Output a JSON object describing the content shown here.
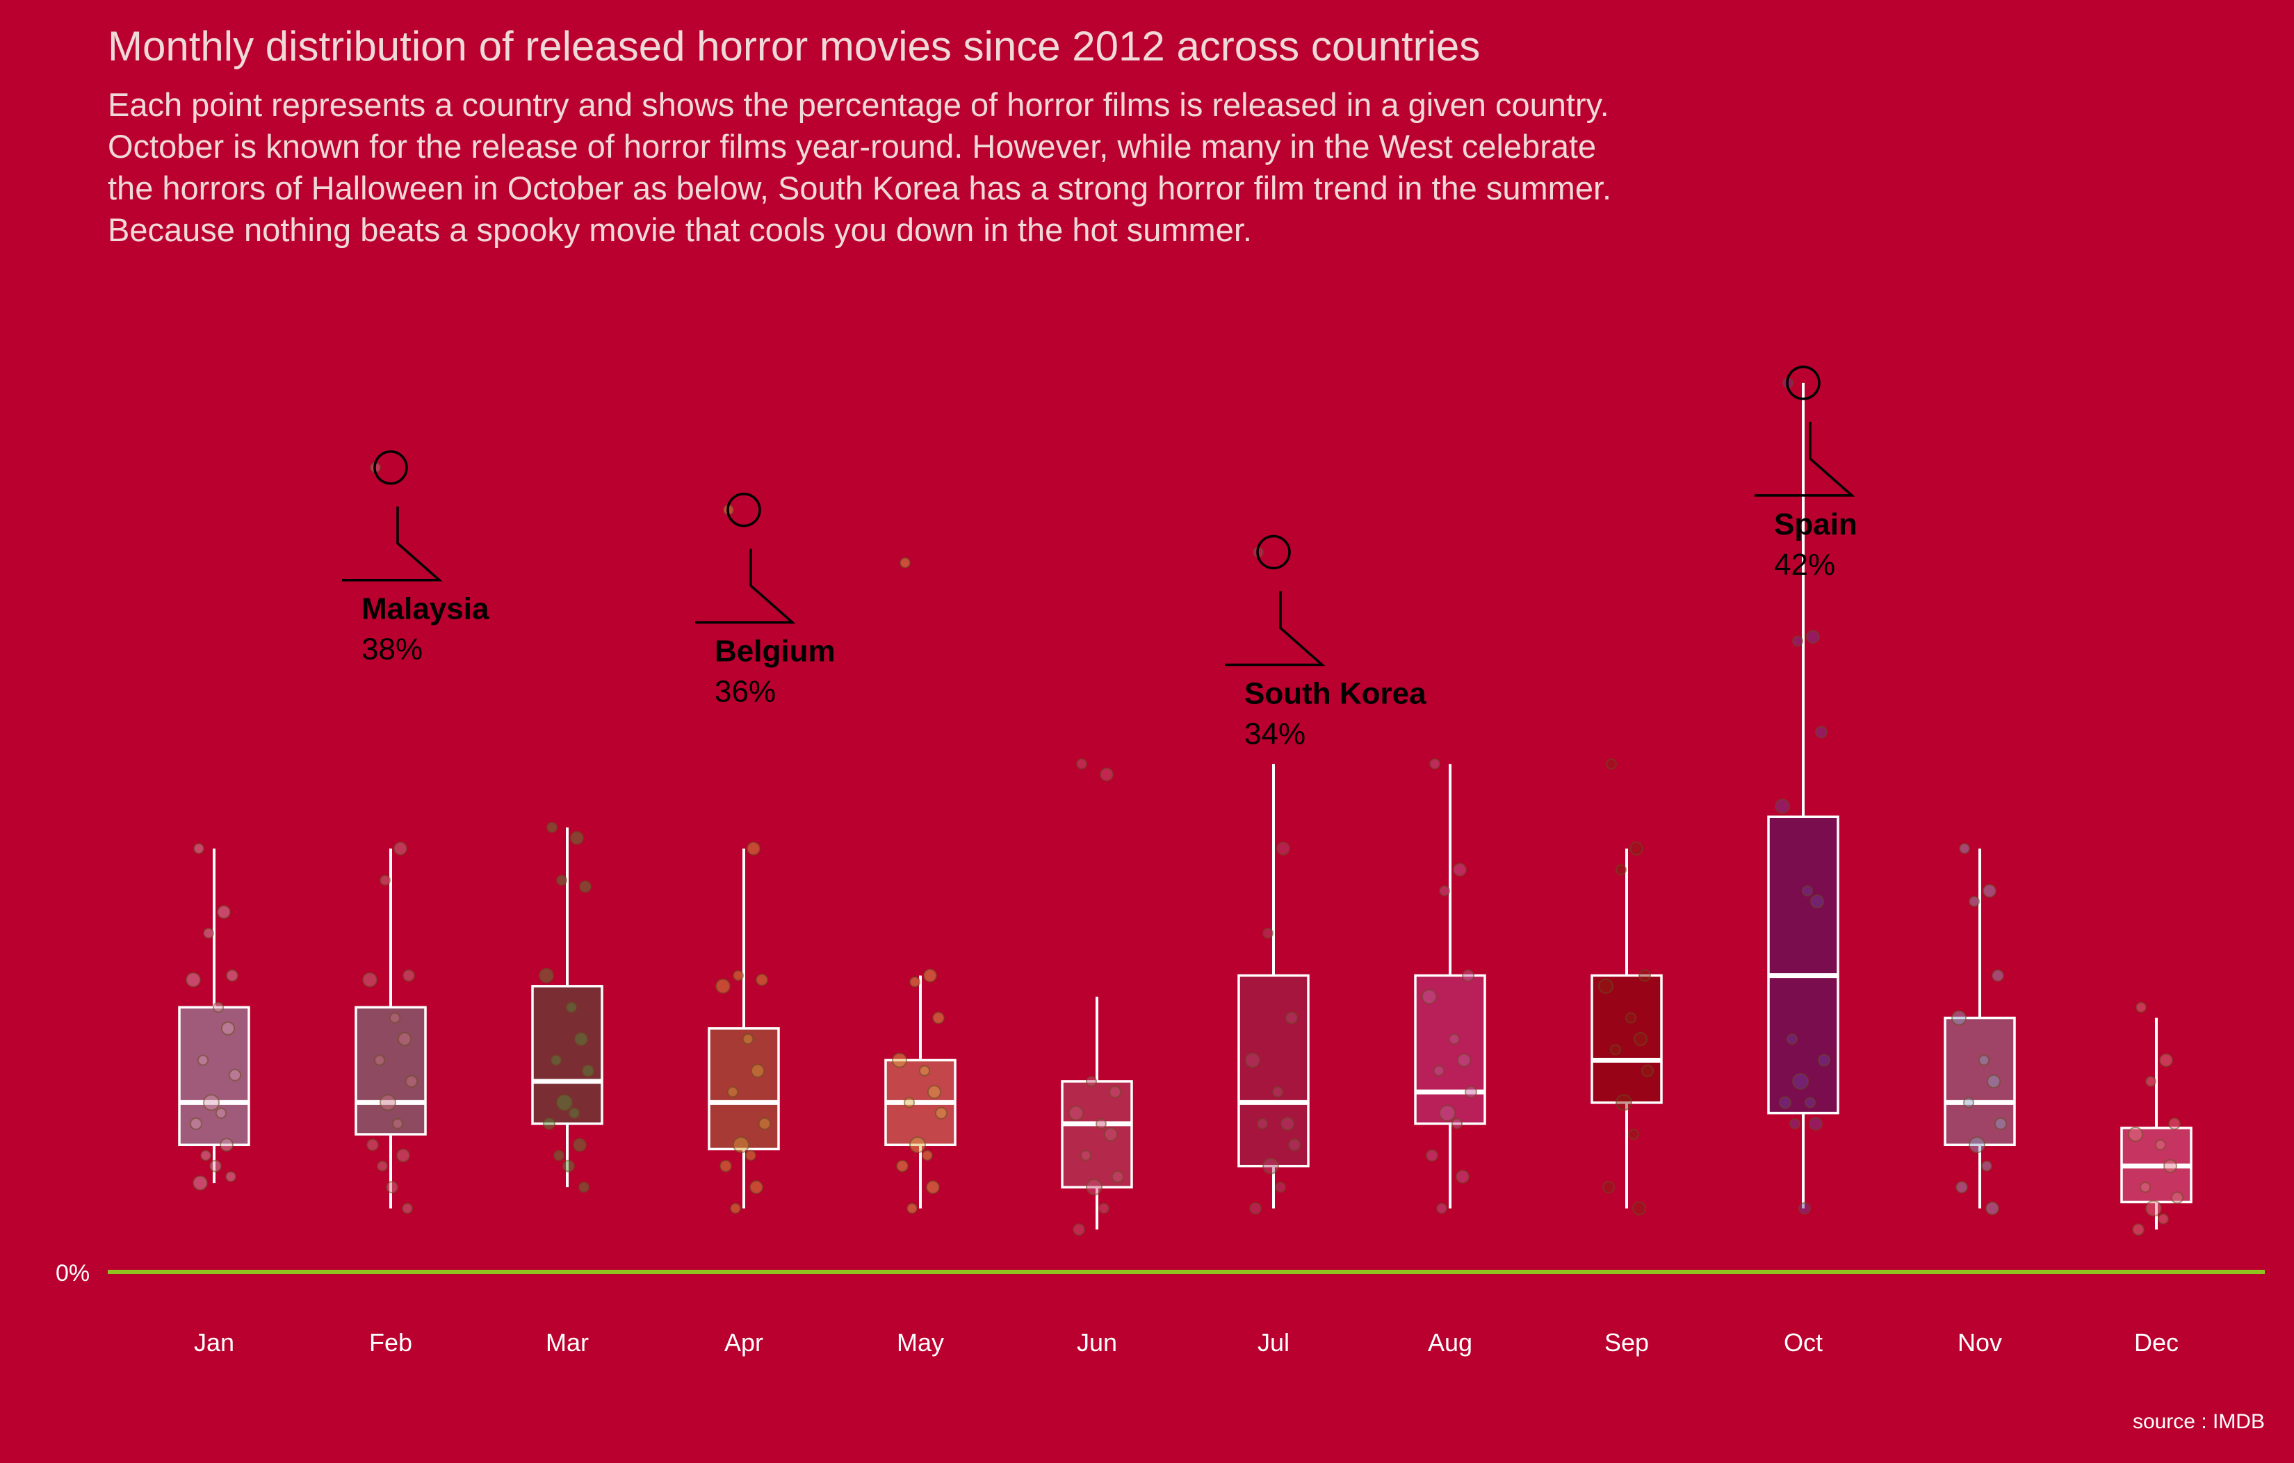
{
  "colors": {
    "background": "#ba002e",
    "baseline": "#8fc31f",
    "box_stroke": "#ffffff",
    "title_text": "#f0d9d9",
    "annotation_text": "#000000",
    "axis_text": "#ffffff"
  },
  "chart_data": {
    "type": "box",
    "title": "Monthly distribution of released horror movies since 2012 across countries",
    "subtitle": [
      "Each point represents a country and shows the percentage of horror films is released in a given country.",
      "October is known for the release of horror films year-round. However, while many in the West celebrate",
      "the horrors of Halloween in October as below, South Korea has a strong horror film trend in the summer.",
      "Because nothing beats a spooky movie that cools you down in the hot summer."
    ],
    "caption": "source : IMDB",
    "y_zero_label": "0%",
    "ylim": [
      0,
      44
    ],
    "grid": false,
    "categories": [
      "Jan",
      "Feb",
      "Mar",
      "Apr",
      "May",
      "Jun",
      "Jul",
      "Aug",
      "Sep",
      "Oct",
      "Nov",
      "Dec"
    ],
    "boxes": [
      {
        "month": "Jan",
        "fill": "#a05a7a",
        "min": 4.2,
        "q1": 6.0,
        "median": 8.0,
        "q3": 12.5,
        "max": 20.0
      },
      {
        "month": "Feb",
        "fill": "#8e4a60",
        "min": 3.0,
        "q1": 6.5,
        "median": 8.0,
        "q3": 12.5,
        "max": 20.0
      },
      {
        "month": "Mar",
        "fill": "#7a2e34",
        "min": 4.0,
        "q1": 7.0,
        "median": 9.0,
        "q3": 13.5,
        "max": 21.0
      },
      {
        "month": "Apr",
        "fill": "#a73a34",
        "min": 3.0,
        "q1": 5.8,
        "median": 8.0,
        "q3": 11.5,
        "max": 20.0
      },
      {
        "month": "May",
        "fill": "#c2464a",
        "min": 3.0,
        "q1": 6.0,
        "median": 8.0,
        "q3": 10.0,
        "max": 14.0
      },
      {
        "month": "Jun",
        "fill": "#b3284b",
        "min": 2.0,
        "q1": 4.0,
        "median": 7.0,
        "q3": 9.0,
        "max": 13.0
      },
      {
        "month": "Jul",
        "fill": "#a5153d",
        "min": 3.0,
        "q1": 5.0,
        "median": 8.0,
        "q3": 14.0,
        "max": 24.0
      },
      {
        "month": "Aug",
        "fill": "#b91f58",
        "min": 3.0,
        "q1": 7.0,
        "median": 8.5,
        "q3": 14.0,
        "max": 24.0
      },
      {
        "month": "Sep",
        "fill": "#990317",
        "min": 3.0,
        "q1": 8.0,
        "median": 10.0,
        "q3": 14.0,
        "max": 20.0
      },
      {
        "month": "Oct",
        "fill": "#7a0d4e",
        "min": 3.0,
        "q1": 7.5,
        "median": 14.0,
        "q3": 21.5,
        "max": 42.0
      },
      {
        "month": "Nov",
        "fill": "#9f4466",
        "min": 3.0,
        "q1": 6.0,
        "median": 8.0,
        "q3": 12.0,
        "max": 20.0
      },
      {
        "month": "Dec",
        "fill": "#c63561",
        "min": 2.0,
        "q1": 3.3,
        "median": 5.0,
        "q3": 6.8,
        "max": 12.0
      }
    ],
    "points": [
      {
        "month": "Jan",
        "values": [
          20.0,
          17.0,
          16.0,
          14.0,
          13.8,
          12.5,
          11.5,
          10.0,
          9.3,
          8.0,
          7.5,
          7.0,
          6.0,
          5.5,
          5.0,
          4.5,
          4.2
        ]
      },
      {
        "month": "Feb",
        "values": [
          38.0,
          20.0,
          18.5,
          14.0,
          13.8,
          12.0,
          11.0,
          10.0,
          9.0,
          8.0,
          7.0,
          6.0,
          5.5,
          5.0,
          4.0,
          3.0
        ]
      },
      {
        "month": "Mar",
        "values": [
          21.0,
          20.5,
          18.5,
          18.2,
          14.0,
          12.5,
          11.0,
          10.0,
          9.5,
          8.0,
          7.5,
          7.0,
          6.0,
          5.5,
          5.0,
          4.0
        ]
      },
      {
        "month": "Apr",
        "values": [
          36.0,
          20.0,
          14.0,
          13.8,
          13.5,
          11.0,
          9.5,
          8.5,
          7.0,
          6.0,
          5.5,
          5.0,
          4.0,
          3.0
        ]
      },
      {
        "month": "May",
        "values": [
          33.5,
          14.0,
          13.7,
          12.0,
          10.0,
          9.5,
          8.5,
          8.0,
          7.5,
          6.0,
          5.5,
          5.0,
          4.0,
          3.0
        ]
      },
      {
        "month": "Jun",
        "values": [
          24.0,
          23.5,
          9.0,
          8.5,
          7.5,
          7.0,
          6.5,
          5.5,
          4.5,
          4.0,
          3.0,
          2.0
        ]
      },
      {
        "month": "Jul",
        "values": [
          34.0,
          20.0,
          16.0,
          12.0,
          10.0,
          8.5,
          7.0,
          7.0,
          6.0,
          5.0,
          4.0,
          3.0
        ]
      },
      {
        "month": "Aug",
        "values": [
          24.0,
          19.0,
          18.0,
          14.0,
          13.0,
          11.0,
          10.0,
          9.5,
          8.5,
          7.5,
          7.0,
          5.5,
          4.5,
          3.0
        ]
      },
      {
        "month": "Sep",
        "values": [
          24.0,
          20.0,
          19.0,
          14.0,
          13.5,
          12.0,
          11.0,
          10.5,
          9.5,
          8.0,
          6.5,
          4.0,
          3.0
        ]
      },
      {
        "month": "Oct",
        "values": [
          42.0,
          30.0,
          29.8,
          25.5,
          22.0,
          18.0,
          17.5,
          11.0,
          10.0,
          9.0,
          8.0,
          8.0,
          7.0,
          7.0,
          3.0
        ]
      },
      {
        "month": "Nov",
        "values": [
          20.0,
          18.0,
          17.5,
          14.0,
          12.0,
          10.0,
          9.0,
          8.0,
          7.0,
          6.0,
          5.0,
          4.0,
          3.0
        ]
      },
      {
        "month": "Dec",
        "values": [
          12.5,
          10.0,
          9.0,
          7.0,
          6.5,
          6.0,
          5.0,
          4.0,
          3.5,
          3.0,
          2.5,
          2.0
        ]
      }
    ],
    "annotations": [
      {
        "month": "Feb",
        "country": "Malaysia",
        "value": 38,
        "label_value": "38%"
      },
      {
        "month": "Apr",
        "country": "Belgium",
        "value": 36,
        "label_value": "36%"
      },
      {
        "month": "Jul",
        "country": "South Korea",
        "value": 34,
        "label_value": "34%"
      },
      {
        "month": "Oct",
        "country": "Spain",
        "value": 42,
        "label_value": "42%"
      }
    ]
  }
}
